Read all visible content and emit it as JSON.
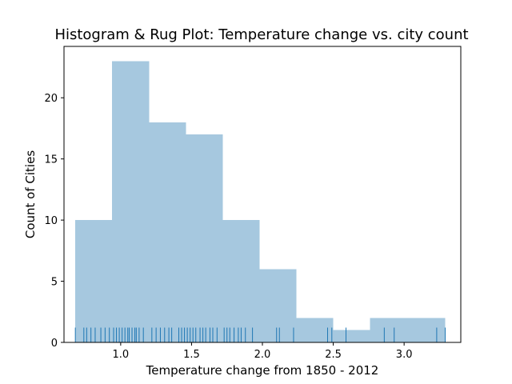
{
  "chart_data": {
    "type": "bar",
    "title": "Histogram & Rug Plot: Temperature change vs. city count",
    "xlabel": "Temperature change from 1850 - 2012",
    "ylabel": "Count of Cities",
    "xlim": [
      0.6,
      3.4
    ],
    "ylim": [
      0,
      24.2
    ],
    "x_ticks": [
      {
        "value": 1.0,
        "label": "1.0"
      },
      {
        "value": 1.5,
        "label": "1.5"
      },
      {
        "value": 2.0,
        "label": "2.0"
      },
      {
        "value": 2.5,
        "label": "2.5"
      },
      {
        "value": 3.0,
        "label": "3.0"
      }
    ],
    "y_ticks": [
      {
        "value": 0,
        "label": "0"
      },
      {
        "value": 5,
        "label": "5"
      },
      {
        "value": 10,
        "label": "10"
      },
      {
        "value": 15,
        "label": "15"
      },
      {
        "value": 20,
        "label": "20"
      }
    ],
    "grid": false,
    "bin_edges": [
      0.68,
      0.94,
      1.2,
      1.46,
      1.72,
      1.98,
      2.24,
      2.5,
      2.76,
      3.02,
      3.29
    ],
    "counts": [
      10,
      23,
      18,
      17,
      10,
      6,
      2,
      1,
      2,
      2
    ],
    "rug": [
      0.68,
      0.74,
      0.76,
      0.79,
      0.82,
      0.86,
      0.89,
      0.92,
      0.95,
      0.97,
      0.99,
      1.01,
      1.03,
      1.05,
      1.06,
      1.08,
      1.1,
      1.11,
      1.13,
      1.16,
      1.22,
      1.25,
      1.28,
      1.31,
      1.34,
      1.36,
      1.41,
      1.43,
      1.45,
      1.47,
      1.49,
      1.51,
      1.53,
      1.56,
      1.58,
      1.6,
      1.63,
      1.65,
      1.68,
      1.73,
      1.75,
      1.77,
      1.8,
      1.83,
      1.85,
      1.88,
      1.93,
      2.1,
      2.12,
      2.22,
      2.46,
      2.49,
      2.59,
      2.86,
      2.93,
      3.23,
      3.29
    ],
    "colors": {
      "bars": "#a6c8df",
      "rug": "#1f77b4",
      "axes": "#000000"
    }
  }
}
